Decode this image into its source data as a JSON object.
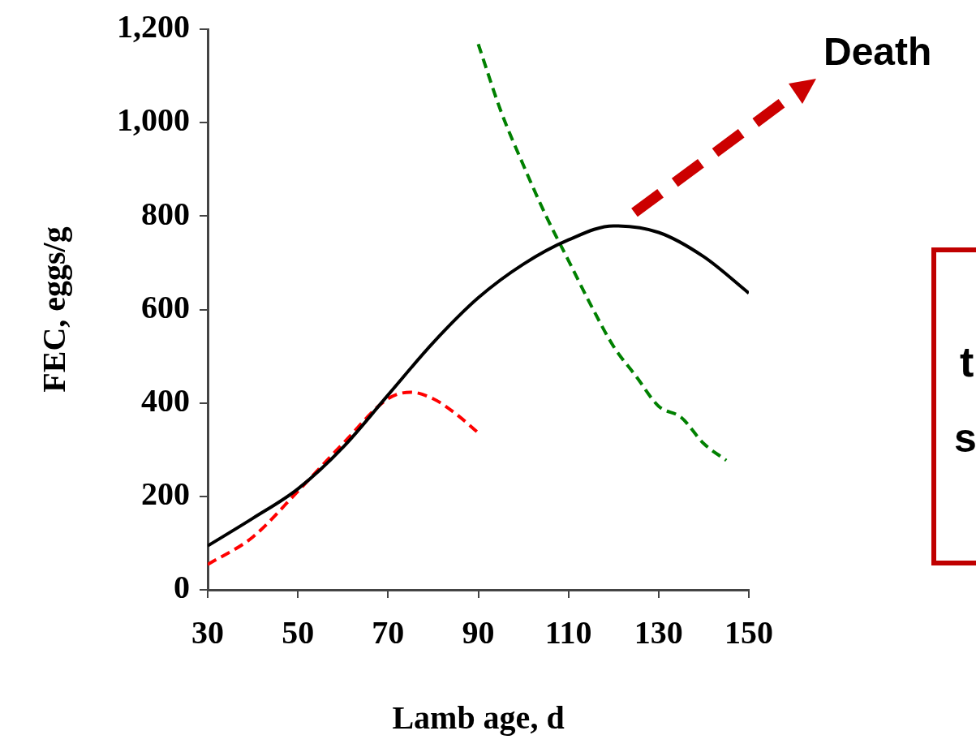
{
  "chart_data": {
    "type": "line",
    "xlabel": "Lamb age, d",
    "ylabel": "FEC, eggs/g",
    "xlim": [
      30,
      150
    ],
    "xticks": [
      30,
      50,
      70,
      90,
      110,
      130,
      150
    ],
    "ylim": [
      0,
      1200
    ],
    "yticks": [
      0,
      200,
      400,
      600,
      800,
      {
        "value": 1000,
        "label": "1,000"
      },
      {
        "value": 1200,
        "label": "1,200"
      }
    ],
    "grid": false,
    "legend": false,
    "marker": "none",
    "series": [
      {
        "color": "#000000",
        "line_style": "solid",
        "x": [
          30,
          40,
          50,
          60,
          70,
          80,
          90,
          100,
          110,
          120,
          130,
          140,
          150
        ],
        "values": [
          94,
          153,
          216,
          305,
          417,
          529,
          625,
          697,
          749,
          779,
          765,
          713,
          635
        ]
      },
      {
        "color": "#ff0000",
        "line_style": "dashed",
        "x": [
          30,
          40,
          50,
          60,
          70,
          75,
          80,
          85,
          90
        ],
        "values": [
          54,
          113,
          211,
          313,
          409,
          423,
          409,
          377,
          336
        ]
      },
      {
        "color": "#008000",
        "line_style": "dashed",
        "x": [
          90,
          95,
          100,
          105,
          110,
          115,
          120,
          125,
          130,
          135,
          140,
          145
        ],
        "values": [
          1168,
          1025,
          909,
          801,
          705,
          609,
          521,
          457,
          393,
          369,
          313,
          277
        ]
      }
    ],
    "annotations": [
      "Death",
      "t",
      "s"
    ]
  }
}
